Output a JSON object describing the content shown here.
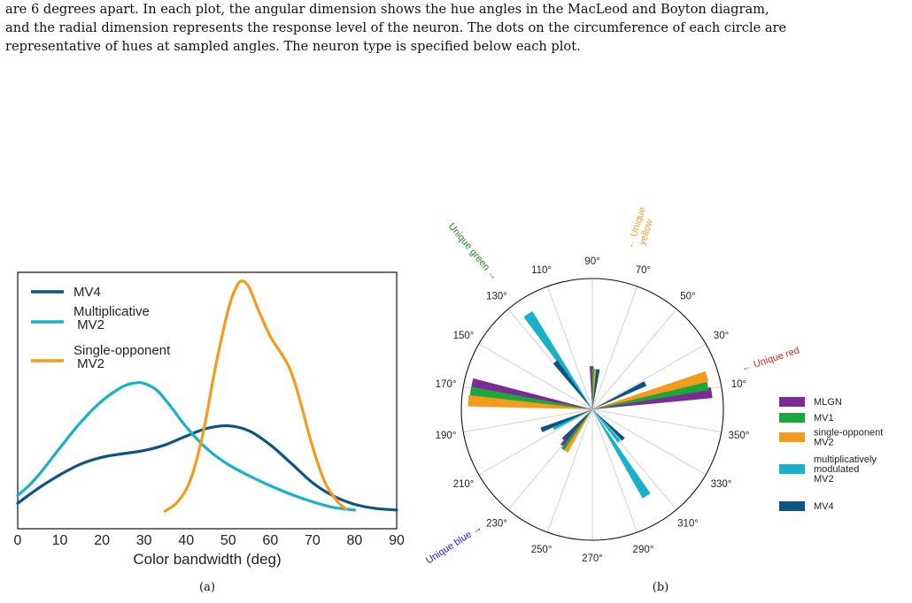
{
  "caption": {
    "lines": [
      "are 6 degrees apart. In each plot, the angular dimension shows the hue angles in the MacLeod and Boyton diagram,",
      "and the radial dimension represents the response level of the neuron. The dots on the circumference of each circle are",
      "representative of hues at sampled angles. The neuron type is specified below each plot."
    ]
  },
  "panel_a": {
    "sublabel": "(a)"
  },
  "panel_b": {
    "sublabel": "(b)"
  },
  "colors": {
    "MV4": "#0d5580",
    "Multiplicative MV2": "#17b1c8",
    "Single-opponent MV2": "#f59a1b",
    "MLGN": "#7b2a96",
    "MV1": "#1aa83c",
    "unique_green": "#1a8a1a",
    "unique_yellow": "#f0a030",
    "unique_red": "#e0201a",
    "unique_blue": "#1a1ae0"
  },
  "chart_data": [
    {
      "type": "line",
      "xlabel": "Color bandwidth (deg)",
      "ylabel": "",
      "xlim": [
        0,
        90
      ],
      "ylim": [
        0,
        0.045
      ],
      "xticks": [
        "0",
        "10",
        "20",
        "30",
        "40",
        "50",
        "60",
        "70",
        "80",
        "90"
      ],
      "grid": false,
      "legend": "top-left",
      "legend_entries": [
        "MV4",
        "Multiplicative\nMV2",
        "Single-opponent\nMV2"
      ],
      "series": [
        {
          "name": "MV4",
          "x": [
            0,
            3,
            6,
            10,
            15,
            20,
            25,
            30,
            35,
            40,
            45,
            50,
            55,
            60,
            65,
            70,
            75,
            80,
            85,
            90
          ],
          "y": [
            0.0015,
            0.0033,
            0.005,
            0.007,
            0.0091,
            0.0104,
            0.0111,
            0.0117,
            0.0128,
            0.0145,
            0.016,
            0.0165,
            0.0155,
            0.0128,
            0.0092,
            0.0055,
            0.0029,
            0.0013,
            0.0005,
            0.0002
          ]
        },
        {
          "name": "Multiplicative\nMV2",
          "x": [
            0,
            3,
            6,
            10,
            15,
            20,
            25,
            28,
            30,
            33,
            36,
            40,
            45,
            50,
            55,
            60,
            65,
            70,
            75,
            80
          ],
          "y": [
            0.003,
            0.0052,
            0.008,
            0.0122,
            0.0172,
            0.0213,
            0.0241,
            0.0248,
            0.0247,
            0.0234,
            0.0206,
            0.0163,
            0.012,
            0.009,
            0.0068,
            0.0049,
            0.0032,
            0.0018,
            0.0007,
            0.0002
          ]
        },
        {
          "name": "Single-opponent\nMV2",
          "x": [
            35,
            38,
            41,
            44,
            47,
            50,
            52,
            53.5,
            55,
            57,
            60,
            63,
            65,
            67,
            70,
            73,
            76,
            78
          ],
          "y": [
            0.0,
            0.0018,
            0.006,
            0.015,
            0.028,
            0.039,
            0.0435,
            0.0445,
            0.0432,
            0.0392,
            0.0338,
            0.03,
            0.0268,
            0.0215,
            0.0125,
            0.0055,
            0.0018,
            0.0004
          ]
        }
      ]
    },
    {
      "type": "polar_bar",
      "tick_labels": [
        "10°",
        "30°",
        "50°",
        "70°",
        "90°",
        "110°",
        "130°",
        "150°",
        "170°",
        "190°",
        "210°",
        "230°",
        "250°",
        "270°",
        "290°",
        "310°",
        "330°",
        "350°"
      ],
      "annotations": [
        "Unique green →",
        "← Unique\nyellow",
        "← Unique red",
        "Unique blue →"
      ],
      "legend": "right",
      "legend_entries": [
        "MLGN",
        "MV1",
        "single-opponent\nMV2",
        "multiplicatively\nmodulated\nMV2",
        "MV4"
      ],
      "rmax": 1.0,
      "series": [
        {
          "name": "MLGN",
          "angles": [
            8,
            91,
            168,
            230
          ],
          "values": [
            0.92,
            0.33,
            0.94,
            0.36
          ]
        },
        {
          "name": "MV1",
          "angles": [
            12,
            88,
            172,
            234
          ],
          "values": [
            0.9,
            0.31,
            0.94,
            0.38
          ]
        },
        {
          "name": "single-opponent\nMV2",
          "angles": [
            16,
            85,
            176,
            238
          ],
          "values": [
            0.91,
            0.3,
            0.95,
            0.38
          ]
        },
        {
          "name": "multiplicatively\nmodulated\nMV2",
          "angles": [
            124,
            206,
            302,
            310
          ],
          "values": [
            0.88,
            0.33,
            0.78,
            0.32
          ]
        },
        {
          "name": "MV4",
          "angles": [
            26,
            82,
            128,
            202,
            226,
            316
          ],
          "values": [
            0.45,
            0.31,
            0.46,
            0.42,
            0.32,
            0.33
          ]
        }
      ]
    }
  ]
}
